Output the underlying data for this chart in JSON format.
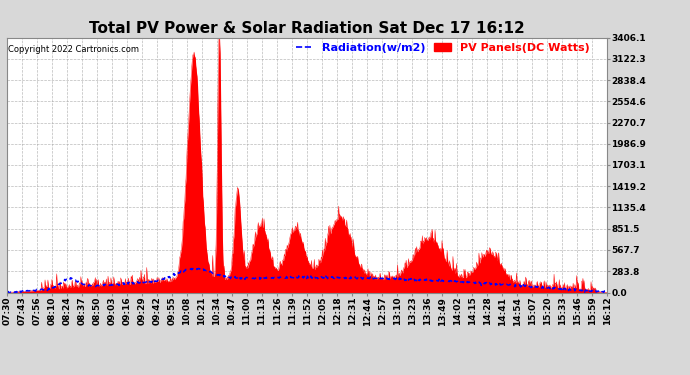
{
  "title": "Total PV Power & Solar Radiation Sat Dec 17 16:12",
  "copyright": "Copyright 2022 Cartronics.com",
  "legend_radiation": "Radiation(w/m2)",
  "legend_pv": "PV Panels(DC Watts)",
  "yticks": [
    0.0,
    283.8,
    567.7,
    851.5,
    1135.4,
    1419.2,
    1703.1,
    1986.9,
    2270.7,
    2554.6,
    2838.4,
    3122.3,
    3406.1
  ],
  "ymax": 3406.1,
  "ymin": 0.0,
  "xtick_labels": [
    "07:30",
    "07:43",
    "07:56",
    "08:10",
    "08:24",
    "08:37",
    "08:50",
    "09:03",
    "09:16",
    "09:29",
    "09:42",
    "09:55",
    "10:08",
    "10:21",
    "10:34",
    "10:47",
    "11:00",
    "11:13",
    "11:26",
    "11:39",
    "11:52",
    "12:05",
    "12:18",
    "12:31",
    "12:44",
    "12:57",
    "13:10",
    "13:23",
    "13:36",
    "13:49",
    "14:02",
    "14:15",
    "14:28",
    "14:41",
    "14:54",
    "15:07",
    "15:20",
    "15:33",
    "15:46",
    "15:59",
    "16:12"
  ],
  "bg_color": "#d8d8d8",
  "plot_bg_color": "#ffffff",
  "grid_color": "#aaaaaa",
  "radiation_color": "#0000ff",
  "pv_color": "#ff0000",
  "title_fontsize": 11,
  "tick_fontsize": 6.5,
  "legend_fontsize": 8
}
